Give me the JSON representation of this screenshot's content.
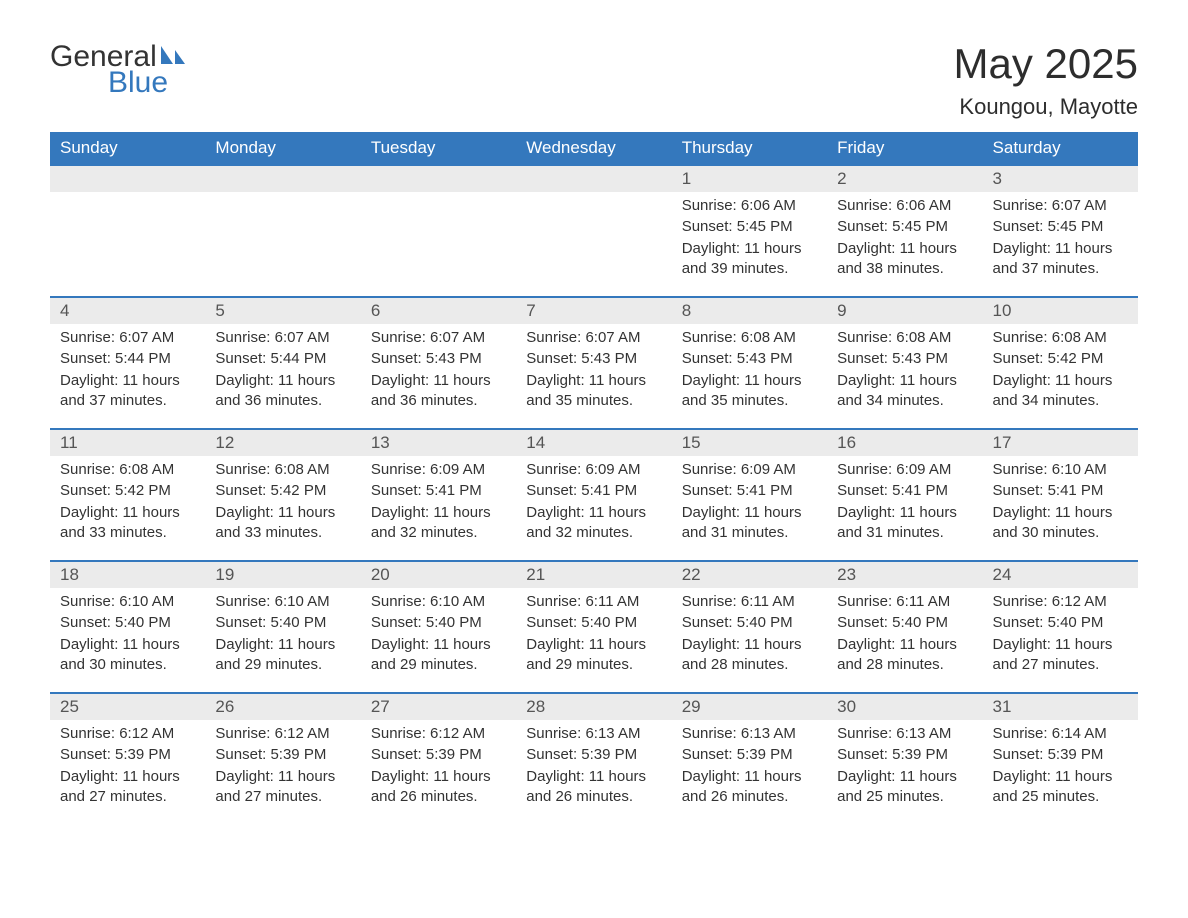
{
  "logo": {
    "text_general": "General",
    "text_blue": "Blue",
    "accent_color": "#3478bd"
  },
  "title": "May 2025",
  "location": "Koungou, Mayotte",
  "colors": {
    "header_bg": "#3478bd",
    "header_text": "#ffffff",
    "daynum_bg": "#ebebeb",
    "daynum_text": "#555555",
    "body_text": "#333333",
    "border": "#3478bd",
    "page_bg": "#ffffff"
  },
  "weekdays": [
    "Sunday",
    "Monday",
    "Tuesday",
    "Wednesday",
    "Thursday",
    "Friday",
    "Saturday"
  ],
  "weeks": [
    [
      null,
      null,
      null,
      null,
      {
        "n": "1",
        "sunrise": "6:06 AM",
        "sunset": "5:45 PM",
        "daylight": "11 hours and 39 minutes."
      },
      {
        "n": "2",
        "sunrise": "6:06 AM",
        "sunset": "5:45 PM",
        "daylight": "11 hours and 38 minutes."
      },
      {
        "n": "3",
        "sunrise": "6:07 AM",
        "sunset": "5:45 PM",
        "daylight": "11 hours and 37 minutes."
      }
    ],
    [
      {
        "n": "4",
        "sunrise": "6:07 AM",
        "sunset": "5:44 PM",
        "daylight": "11 hours and 37 minutes."
      },
      {
        "n": "5",
        "sunrise": "6:07 AM",
        "sunset": "5:44 PM",
        "daylight": "11 hours and 36 minutes."
      },
      {
        "n": "6",
        "sunrise": "6:07 AM",
        "sunset": "5:43 PM",
        "daylight": "11 hours and 36 minutes."
      },
      {
        "n": "7",
        "sunrise": "6:07 AM",
        "sunset": "5:43 PM",
        "daylight": "11 hours and 35 minutes."
      },
      {
        "n": "8",
        "sunrise": "6:08 AM",
        "sunset": "5:43 PM",
        "daylight": "11 hours and 35 minutes."
      },
      {
        "n": "9",
        "sunrise": "6:08 AM",
        "sunset": "5:43 PM",
        "daylight": "11 hours and 34 minutes."
      },
      {
        "n": "10",
        "sunrise": "6:08 AM",
        "sunset": "5:42 PM",
        "daylight": "11 hours and 34 minutes."
      }
    ],
    [
      {
        "n": "11",
        "sunrise": "6:08 AM",
        "sunset": "5:42 PM",
        "daylight": "11 hours and 33 minutes."
      },
      {
        "n": "12",
        "sunrise": "6:08 AM",
        "sunset": "5:42 PM",
        "daylight": "11 hours and 33 minutes."
      },
      {
        "n": "13",
        "sunrise": "6:09 AM",
        "sunset": "5:41 PM",
        "daylight": "11 hours and 32 minutes."
      },
      {
        "n": "14",
        "sunrise": "6:09 AM",
        "sunset": "5:41 PM",
        "daylight": "11 hours and 32 minutes."
      },
      {
        "n": "15",
        "sunrise": "6:09 AM",
        "sunset": "5:41 PM",
        "daylight": "11 hours and 31 minutes."
      },
      {
        "n": "16",
        "sunrise": "6:09 AM",
        "sunset": "5:41 PM",
        "daylight": "11 hours and 31 minutes."
      },
      {
        "n": "17",
        "sunrise": "6:10 AM",
        "sunset": "5:41 PM",
        "daylight": "11 hours and 30 minutes."
      }
    ],
    [
      {
        "n": "18",
        "sunrise": "6:10 AM",
        "sunset": "5:40 PM",
        "daylight": "11 hours and 30 minutes."
      },
      {
        "n": "19",
        "sunrise": "6:10 AM",
        "sunset": "5:40 PM",
        "daylight": "11 hours and 29 minutes."
      },
      {
        "n": "20",
        "sunrise": "6:10 AM",
        "sunset": "5:40 PM",
        "daylight": "11 hours and 29 minutes."
      },
      {
        "n": "21",
        "sunrise": "6:11 AM",
        "sunset": "5:40 PM",
        "daylight": "11 hours and 29 minutes."
      },
      {
        "n": "22",
        "sunrise": "6:11 AM",
        "sunset": "5:40 PM",
        "daylight": "11 hours and 28 minutes."
      },
      {
        "n": "23",
        "sunrise": "6:11 AM",
        "sunset": "5:40 PM",
        "daylight": "11 hours and 28 minutes."
      },
      {
        "n": "24",
        "sunrise": "6:12 AM",
        "sunset": "5:40 PM",
        "daylight": "11 hours and 27 minutes."
      }
    ],
    [
      {
        "n": "25",
        "sunrise": "6:12 AM",
        "sunset": "5:39 PM",
        "daylight": "11 hours and 27 minutes."
      },
      {
        "n": "26",
        "sunrise": "6:12 AM",
        "sunset": "5:39 PM",
        "daylight": "11 hours and 27 minutes."
      },
      {
        "n": "27",
        "sunrise": "6:12 AM",
        "sunset": "5:39 PM",
        "daylight": "11 hours and 26 minutes."
      },
      {
        "n": "28",
        "sunrise": "6:13 AM",
        "sunset": "5:39 PM",
        "daylight": "11 hours and 26 minutes."
      },
      {
        "n": "29",
        "sunrise": "6:13 AM",
        "sunset": "5:39 PM",
        "daylight": "11 hours and 26 minutes."
      },
      {
        "n": "30",
        "sunrise": "6:13 AM",
        "sunset": "5:39 PM",
        "daylight": "11 hours and 25 minutes."
      },
      {
        "n": "31",
        "sunrise": "6:14 AM",
        "sunset": "5:39 PM",
        "daylight": "11 hours and 25 minutes."
      }
    ]
  ],
  "labels": {
    "sunrise": "Sunrise:",
    "sunset": "Sunset:",
    "daylight": "Daylight:"
  }
}
